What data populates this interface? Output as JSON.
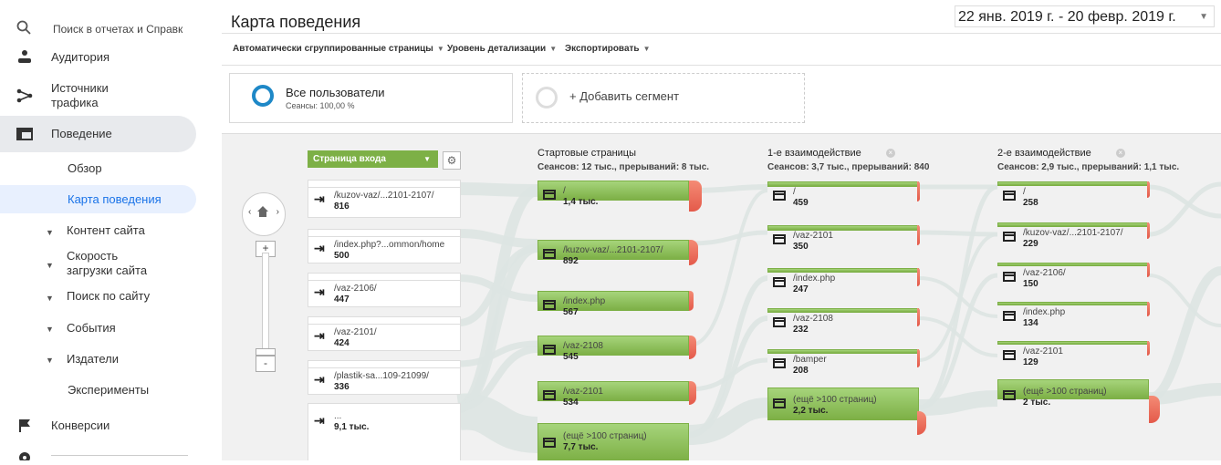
{
  "sidebar": {
    "search_placeholder": "Поиск в отчетах и Справк",
    "items": [
      {
        "label": "Аудитория"
      },
      {
        "label": "Источники трафика"
      },
      {
        "label": "Поведение"
      },
      {
        "label": "Конверсии"
      }
    ],
    "behavior_sub": [
      {
        "label": "Обзор"
      },
      {
        "label": "Карта поведения"
      },
      {
        "label": "Контент сайта"
      },
      {
        "label": "Скорость загрузки сайта"
      },
      {
        "label": "Поиск по сайту"
      },
      {
        "label": "События"
      },
      {
        "label": "Издатели"
      },
      {
        "label": "Эксперименты"
      }
    ]
  },
  "header": {
    "title": "Карта поведения",
    "date_range": "22 янв. 2019 г. - 20 февр. 2019 г."
  },
  "toolbar": {
    "grouping": "Автоматически сгруппированные страницы",
    "detail": "Уровень детализации",
    "export": "Экспортировать"
  },
  "segments": {
    "all_users": "Все пользователи",
    "all_users_sub": "Сеансы: 100,00 %",
    "add_segment": "+ Добавить сегмент"
  },
  "flow": {
    "entry_dimension": "Страница входа",
    "entries": [
      {
        "name": "/kuzov-vaz/...2101-2107/",
        "value": "816"
      },
      {
        "name": "/index.php?...ommon/home",
        "value": "500"
      },
      {
        "name": "/vaz-2106/",
        "value": "447"
      },
      {
        "name": "/vaz-2101/",
        "value": "424"
      },
      {
        "name": "/plastik-sa...109-21099/",
        "value": "336"
      },
      {
        "name": "...",
        "value": "9,1 тыс."
      }
    ],
    "columns": [
      {
        "title": "Стартовые страницы",
        "sub": "Сеансов: 12 тыс., прерываний: 8 тыс.",
        "nodes": [
          {
            "name": "/",
            "value": "1,4 тыс."
          },
          {
            "name": "/kuzov-vaz/...2101-2107/",
            "value": "892"
          },
          {
            "name": "/index.php",
            "value": "567"
          },
          {
            "name": "/vaz-2108",
            "value": "545"
          },
          {
            "name": "/vaz-2101",
            "value": "534"
          },
          {
            "name": "(ещё >100 страниц)",
            "value": "7,7 тыс."
          }
        ]
      },
      {
        "title": "1-е взаимодействие",
        "sub": "Сеансов: 3,7 тыс., прерываний: 840",
        "nodes": [
          {
            "name": "/",
            "value": "459"
          },
          {
            "name": "/vaz-2101",
            "value": "350"
          },
          {
            "name": "/index.php",
            "value": "247"
          },
          {
            "name": "/vaz-2108",
            "value": "232"
          },
          {
            "name": "/bamper",
            "value": "208"
          },
          {
            "name": "(ещё >100 страниц)",
            "value": "2,2 тыс."
          }
        ]
      },
      {
        "title": "2-е взаимодействие",
        "sub": "Сеансов: 2,9 тыс., прерываний: 1,1 тыс.",
        "nodes": [
          {
            "name": "/",
            "value": "258"
          },
          {
            "name": "/kuzov-vaz/...2101-2107/",
            "value": "229"
          },
          {
            "name": "/vaz-2106/",
            "value": "150"
          },
          {
            "name": "/index.php",
            "value": "134"
          },
          {
            "name": "/vaz-2101",
            "value": "129"
          },
          {
            "name": "(ещё >100 страниц)",
            "value": "2 тыс."
          }
        ]
      }
    ]
  }
}
